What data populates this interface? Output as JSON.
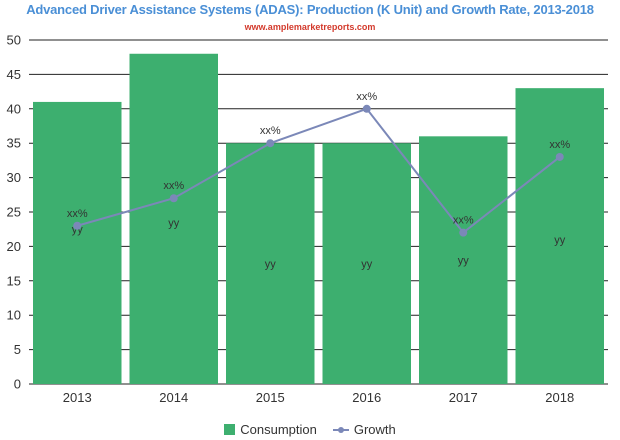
{
  "header": {
    "title": "Advanced Driver Assistance Systems (ADAS): Production (K Unit) and Growth Rate, 2013-2018",
    "subtitle": "www.amplemarketreports.com"
  },
  "colors": {
    "bar": "#3daf6f",
    "line": "#7b88b8",
    "grid": "#222222",
    "title": "#4a8fd6",
    "subtitle": "#d33a2c"
  },
  "chart_data": {
    "type": "bar",
    "title": "Advanced Driver Assistance Systems (ADAS): Production (K Unit) and Growth Rate, 2013-2018",
    "categories": [
      "2013",
      "2014",
      "2015",
      "2016",
      "2017",
      "2018"
    ],
    "ylim": [
      0,
      50
    ],
    "yticks": [
      0,
      5,
      10,
      15,
      20,
      25,
      30,
      35,
      40,
      45,
      50
    ],
    "grid": true,
    "legend_position": "bottom",
    "series": [
      {
        "name": "Consumption",
        "type": "bar",
        "values": [
          41,
          48,
          35,
          35,
          36,
          43
        ],
        "labels": [
          "yy",
          "yy",
          "yy",
          "yy",
          "yy",
          "yy"
        ]
      },
      {
        "name": "Growth",
        "type": "line",
        "values": [
          23,
          27,
          35,
          40,
          22,
          33
        ],
        "labels": [
          "xx%",
          "xx%",
          "xx%",
          "xx%",
          "xx%",
          "xx%"
        ]
      }
    ],
    "bar_label_values": [
      22.5,
      23.5,
      17.5,
      17.5,
      18,
      21
    ]
  },
  "legend": {
    "items": [
      {
        "label": "Consumption"
      },
      {
        "label": "Growth"
      }
    ]
  }
}
